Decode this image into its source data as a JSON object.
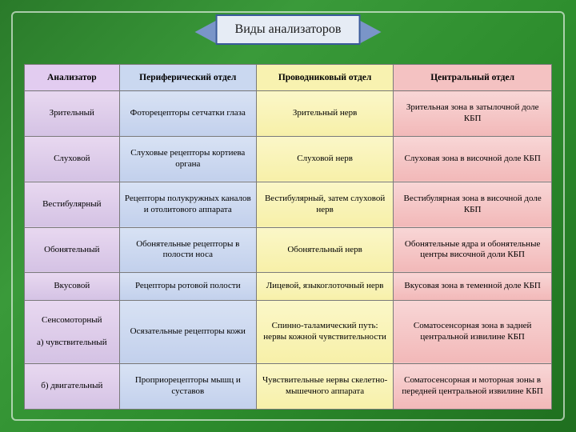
{
  "title": "Виды анализаторов",
  "columns": [
    "Анализатор",
    "Периферический отдел",
    "Проводниковый отдел",
    "Центральный отдел"
  ],
  "column_colors_header": [
    "#e2ccf0",
    "#cad8f0",
    "#f8f2b0",
    "#f4c2c2"
  ],
  "column_colors_body": [
    "#e0cdee",
    "#ccdaf0",
    "#f9f3b8",
    "#f5c8c8"
  ],
  "border_color": "#7a7a7a",
  "banner_fill": "#e6ecf5",
  "banner_border": "#3a5a9a",
  "ribbon_color": "#7a95c8",
  "background_base": "#2a7a2a",
  "font_family": "Times New Roman",
  "header_fontsize": 11.5,
  "body_fontsize": 11,
  "title_fontsize": 16,
  "col_widths_pct": [
    18,
    26,
    26,
    30
  ],
  "rows": [
    [
      "Зрительный",
      "Фоторецепторы сетчатки глаза",
      "Зрительный нерв",
      "Зрительная зона в затылочной доле КБП"
    ],
    [
      "Слуховой",
      "Слуховые рецепторы кортиева органа",
      "Слуховой нерв",
      "Слуховая зона в височной доле КБП"
    ],
    [
      "Вестибулярный",
      "Рецепторы полукружных каналов и отолитового аппарата",
      "Вестибулярный, затем слуховой нерв",
      "Вестибулярная зона в височной доле КБП"
    ],
    [
      "Обонятельный",
      "Обонятельные рецепторы в полости носа",
      "Обонятельный нерв",
      "Обонятельные ядра и обонятельные центры височной доли КБП"
    ],
    [
      "Вкусовой",
      "Рецепторы ротовой полости",
      "Лицевой, языкоглоточный нерв",
      "Вкусовая зона в теменной доле КБП"
    ],
    [
      "Сенсомоторный\nа) чувствительный",
      "Осязательные рецепторы кожи",
      "Спинно-таламический путь: нервы кожной чувствительности",
      "Соматосенсорная зона в задней центральной извилине КБП"
    ],
    [
      "б) двигательный",
      "Проприорецепторы мышц и суставов",
      "Чувствительные нервы скелетно-мышечного аппарата",
      "Соматосенсорная и моторная зоны в передней центральной извилине КБП"
    ]
  ]
}
